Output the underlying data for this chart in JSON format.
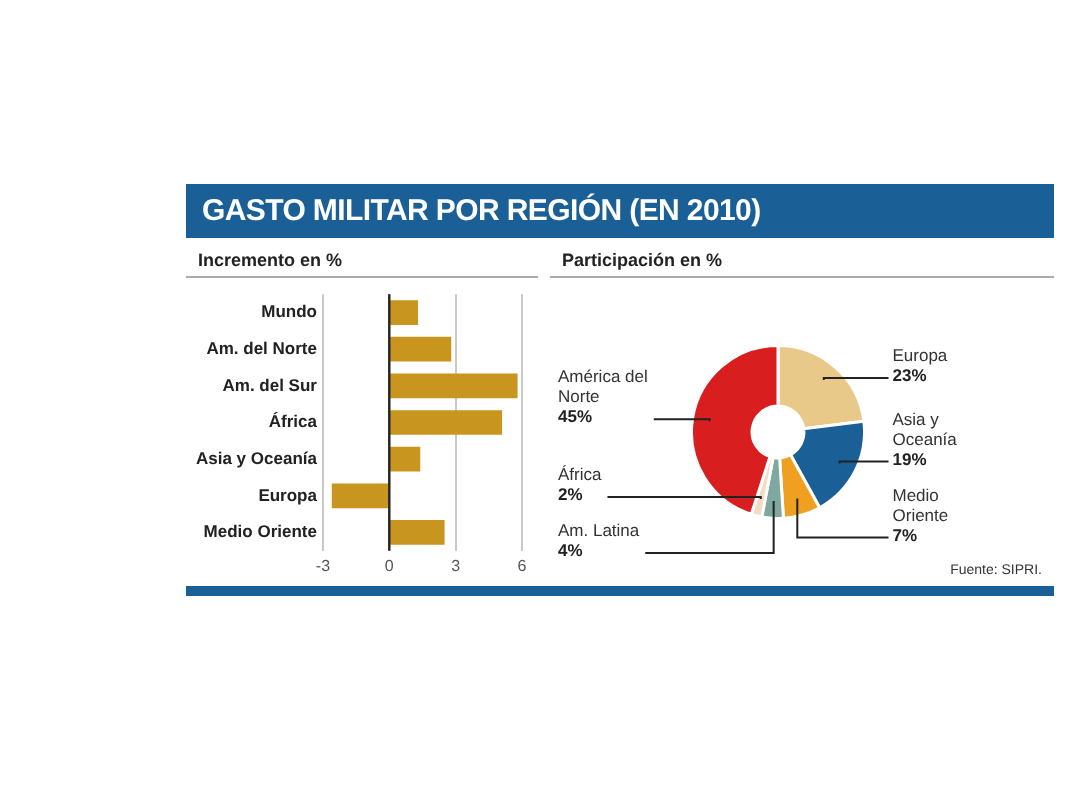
{
  "chart_data": [
    {
      "type": "bar",
      "orientation": "horizontal",
      "title": "GASTO MILITAR POR REGIÓN (EN 2010)",
      "subtitle": "Incremento en %",
      "categories": [
        "Mundo",
        "Am. del Norte",
        "Am. del Sur",
        "África",
        "Asia y Oceanía",
        "Europa",
        "Medio Oriente"
      ],
      "values": [
        1.3,
        2.8,
        5.8,
        5.1,
        1.4,
        -2.6,
        2.5
      ],
      "color": "#c8961e",
      "xlim": [
        -3,
        6
      ],
      "xticks": [
        -3,
        0,
        3,
        6
      ],
      "grid": "x",
      "ref_lines": [
        {
          "axis": "x",
          "value": 0,
          "color": "#222222"
        }
      ]
    },
    {
      "type": "donut",
      "subtitle": "Participación en %",
      "categories": [
        "Europa",
        "Asia y Oceanía",
        "Medio Oriente",
        "Am. Latina",
        "África",
        "América del Norte"
      ],
      "values": [
        23,
        19,
        7,
        4,
        2,
        45
      ],
      "colors": [
        "#e8c98a",
        "#1a5f96",
        "#f0a020",
        "#7fa8a0",
        "#f2dcc4",
        "#d81e1e"
      ],
      "value_labels": [
        "23%",
        "19%",
        "7%",
        "4%",
        "2%",
        "45%"
      ],
      "annotations": [
        "Fuente: SIPRI."
      ]
    }
  ]
}
